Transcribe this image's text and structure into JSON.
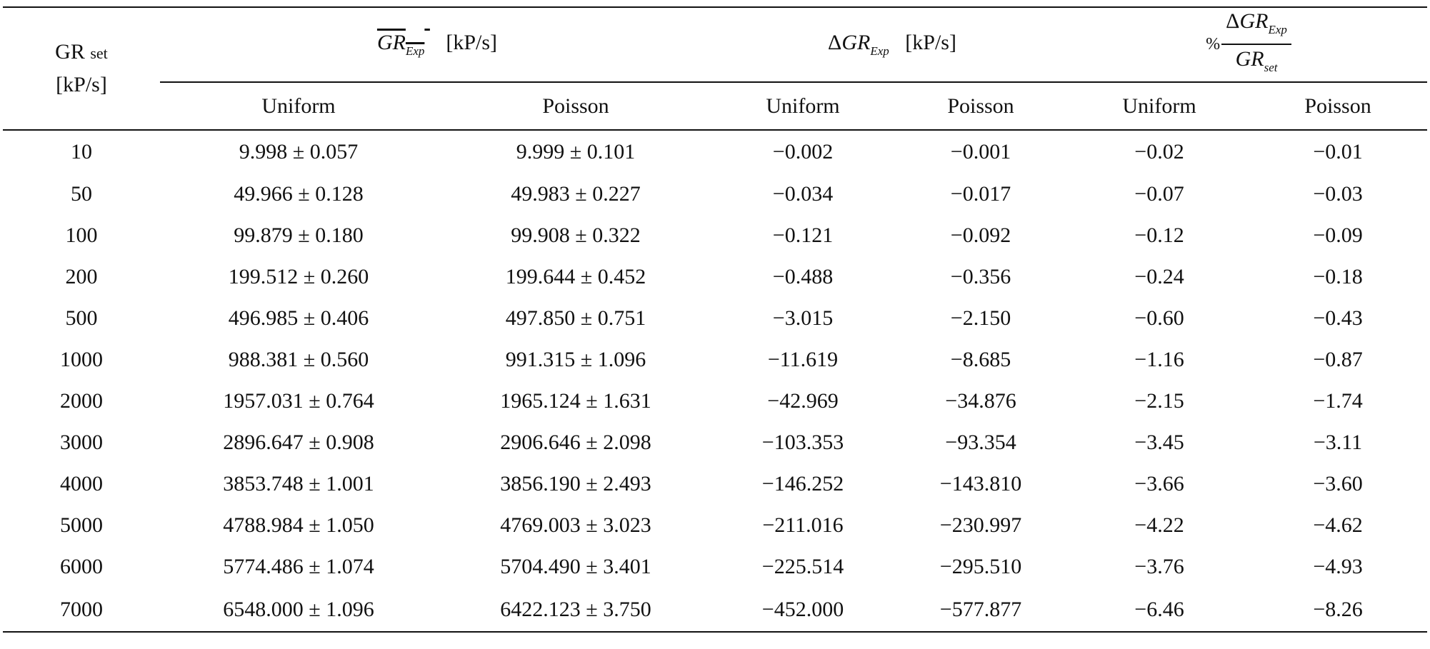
{
  "table": {
    "header": {
      "gr_set": {
        "main": "GR",
        "sub": "set",
        "unit": "[kP/s]"
      },
      "gr_exp_mean": {
        "symbol": "GR",
        "sub": "Exp",
        "unit": "[kP/s]"
      },
      "delta_gr_exp": {
        "delta": "Δ",
        "symbol": "GR",
        "sub": "Exp",
        "unit": "[kP/s]"
      },
      "percent": {
        "pct": "%",
        "num_delta": "Δ",
        "num_symbol": "GR",
        "num_sub": "Exp",
        "den_symbol": "GR",
        "den_sub": "set"
      },
      "sub_columns": [
        "Uniform",
        "Poisson",
        "Uniform",
        "Poisson",
        "Uniform",
        "Poisson"
      ]
    },
    "rows": [
      [
        "10",
        "9.998 ± 0.057",
        "9.999 ± 0.101",
        "−0.002",
        "−0.001",
        "−0.02",
        "−0.01"
      ],
      [
        "50",
        "49.966 ± 0.128",
        "49.983 ± 0.227",
        "−0.034",
        "−0.017",
        "−0.07",
        "−0.03"
      ],
      [
        "100",
        "99.879 ± 0.180",
        "99.908 ± 0.322",
        "−0.121",
        "−0.092",
        "−0.12",
        "−0.09"
      ],
      [
        "200",
        "199.512 ± 0.260",
        "199.644 ± 0.452",
        "−0.488",
        "−0.356",
        "−0.24",
        "−0.18"
      ],
      [
        "500",
        "496.985 ± 0.406",
        "497.850 ± 0.751",
        "−3.015",
        "−2.150",
        "−0.60",
        "−0.43"
      ],
      [
        "1000",
        "988.381 ± 0.560",
        "991.315 ± 1.096",
        "−11.619",
        "−8.685",
        "−1.16",
        "−0.87"
      ],
      [
        "2000",
        "1957.031 ± 0.764",
        "1965.124 ± 1.631",
        "−42.969",
        "−34.876",
        "−2.15",
        "−1.74"
      ],
      [
        "3000",
        "2896.647 ± 0.908",
        "2906.646 ± 2.098",
        "−103.353",
        "−93.354",
        "−3.45",
        "−3.11"
      ],
      [
        "4000",
        "3853.748 ± 1.001",
        "3856.190 ± 2.493",
        "−146.252",
        "−143.810",
        "−3.66",
        "−3.60"
      ],
      [
        "5000",
        "4788.984 ± 1.050",
        "4769.003 ± 3.023",
        "−211.016",
        "−230.997",
        "−4.22",
        "−4.62"
      ],
      [
        "6000",
        "5774.486 ± 1.074",
        "5704.490 ± 3.401",
        "−225.514",
        "−295.510",
        "−3.76",
        "−4.93"
      ],
      [
        "7000",
        "6548.000 ± 1.096",
        "6422.123 ± 3.750",
        "−452.000",
        "−577.877",
        "−6.46",
        "−8.26"
      ]
    ]
  }
}
